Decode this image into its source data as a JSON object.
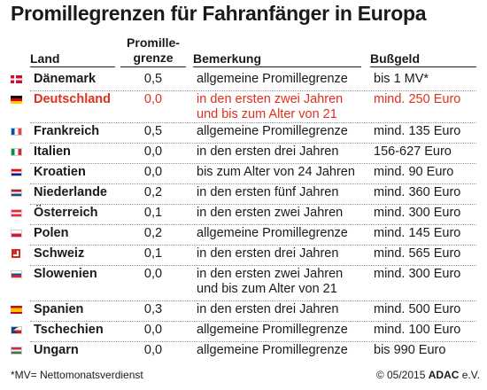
{
  "title": "Promillegrenzen für Fahranfänger in Europa",
  "header": {
    "land": "Land",
    "promille_line1": "Promille-",
    "promille_line2": "grenze",
    "bemerkung": "Bemerkung",
    "bussgeld": "Bußgeld"
  },
  "rows": [
    {
      "land": "Dänemark",
      "promille": "0,5",
      "bemerkung": "allgemeine Promillegrenze",
      "bussgeld": "bis 1 MV*",
      "flag": "denmark-flag-icon"
    },
    {
      "land": "Deutschland",
      "promille": "0,0",
      "bemerkung": "in den ersten zwei Jahren",
      "bemerkung2": "und bis zum Alter von 21",
      "bussgeld": "mind. 250 Euro",
      "flag": "germany-flag-icon"
    },
    {
      "land": "Frankreich",
      "promille": "0,5",
      "bemerkung": "allgemeine Promillegrenze",
      "bussgeld": "mind. 135 Euro",
      "flag": "france-flag-icon"
    },
    {
      "land": "Italien",
      "promille": "0,0",
      "bemerkung": "in den ersten drei Jahren",
      "bussgeld": "156-627 Euro",
      "flag": "italy-flag-icon"
    },
    {
      "land": "Kroatien",
      "promille": "0,0",
      "bemerkung": "bis zum Alter von 24 Jahren",
      "bussgeld": "mind. 90 Euro",
      "flag": "croatia-flag-icon"
    },
    {
      "land": "Niederlande",
      "promille": "0,2",
      "bemerkung": "in den ersten fünf Jahren",
      "bussgeld": "mind. 360 Euro",
      "flag": "netherlands-flag-icon"
    },
    {
      "land": "Österreich",
      "promille": "0,1",
      "bemerkung": "in den ersten zwei Jahren",
      "bussgeld": "mind. 300 Euro",
      "flag": "austria-flag-icon"
    },
    {
      "land": "Polen",
      "promille": "0,2",
      "bemerkung": "allgemeine Promillegrenze",
      "bussgeld": "mind. 145 Euro",
      "flag": "poland-flag-icon"
    },
    {
      "land": "Schweiz",
      "promille": "0,1",
      "bemerkung": "in den ersten drei Jahren",
      "bussgeld": "mind. 565 Euro",
      "flag": "switzerland-flag-icon"
    },
    {
      "land": "Slowenien",
      "promille": "0,0",
      "bemerkung": "in den ersten zwei Jahren",
      "bemerkung2": "und bis zum Alter von 21",
      "bussgeld": "mind. 300 Euro",
      "flag": "slovenia-flag-icon"
    },
    {
      "land": "Spanien",
      "promille": "0,3",
      "bemerkung": "in den ersten drei Jahren",
      "bussgeld": "mind. 500 Euro",
      "flag": "spain-flag-icon"
    },
    {
      "land": "Tschechien",
      "promille": "0,0",
      "bemerkung": "allgemeine Promillegrenze",
      "bussgeld": "mind. 100 Euro",
      "flag": "czech-flag-icon"
    },
    {
      "land": "Ungarn",
      "promille": "0,0",
      "bemerkung": "allgemeine Promillegrenze",
      "bussgeld": "bis 990 Euro",
      "flag": "hungary-flag-icon"
    }
  ],
  "footer": {
    "note": "*MV= Nettomonatsverdienst",
    "copyright": "© 05/2015",
    "brand": "ADAC",
    "brand_suffix": "e.V."
  },
  "colors": {
    "highlight": "#e0301e",
    "text": "#1a1a1a"
  }
}
